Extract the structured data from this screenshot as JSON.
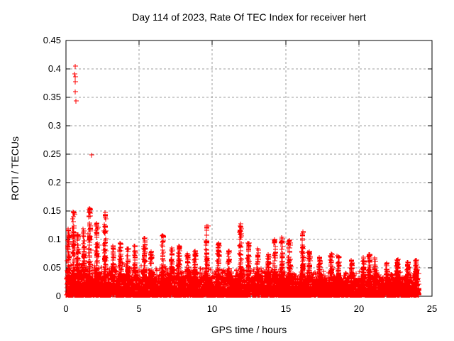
{
  "background_color": "#ffffff",
  "chart_data": {
    "type": "scatter",
    "title": "Day 114 of 2023, Rate Of TEC Index for receiver hert",
    "xlabel": "GPS time / hours",
    "ylabel": "ROTI / TECUs",
    "xlim": [
      0,
      25
    ],
    "ylim": [
      0,
      0.45
    ],
    "xticks": [
      0,
      5,
      10,
      15,
      20,
      25
    ],
    "xtick_labels": [
      "0",
      "5",
      "10",
      "15",
      "20",
      "25"
    ],
    "yticks": [
      0,
      0.05,
      0.1,
      0.15,
      0.2,
      0.25,
      0.3,
      0.35,
      0.4,
      0.45
    ],
    "ytick_labels": [
      "0",
      "0.05",
      "0.1",
      "0.15",
      "0.2",
      "0.25",
      "0.3",
      "0.35",
      "0.4",
      "0.45"
    ],
    "grid": true,
    "legend": null,
    "marker": "plus",
    "marker_color": "#ff0000",
    "grid_color": "#9e9e9e",
    "frame_color": "#000000",
    "x_data_range": [
      0,
      24.1
    ],
    "baseline_band": {
      "y_min": 0.002,
      "y_typical_max_by_hour": [
        [
          0,
          0.065
        ],
        [
          2,
          0.06
        ],
        [
          6,
          0.055
        ],
        [
          10,
          0.055
        ],
        [
          14,
          0.05
        ],
        [
          17,
          0.045
        ],
        [
          21,
          0.043
        ],
        [
          24.1,
          0.045
        ]
      ],
      "description": "dense noise band of ROTI values hugging 0-0.05 TECUs across the full 24 h"
    },
    "outlier_points": [
      [
        0.62,
        0.405
      ],
      [
        0.6,
        0.391
      ],
      [
        0.62,
        0.386
      ],
      [
        0.63,
        0.378
      ],
      [
        0.65,
        0.36
      ],
      [
        0.66,
        0.344
      ],
      [
        1.74,
        0.249
      ]
    ],
    "spike_peaks": [
      [
        0.15,
        0.12
      ],
      [
        0.5,
        0.149
      ],
      [
        0.8,
        0.11
      ],
      [
        1.2,
        0.12
      ],
      [
        1.6,
        0.155
      ],
      [
        2.1,
        0.13
      ],
      [
        2.65,
        0.149
      ],
      [
        3.2,
        0.09
      ],
      [
        3.7,
        0.095
      ],
      [
        4.2,
        0.085
      ],
      [
        4.7,
        0.09
      ],
      [
        5.35,
        0.105
      ],
      [
        5.8,
        0.08
      ],
      [
        6.6,
        0.11
      ],
      [
        7.2,
        0.085
      ],
      [
        7.7,
        0.09
      ],
      [
        8.3,
        0.075
      ],
      [
        8.8,
        0.08
      ],
      [
        9.6,
        0.125
      ],
      [
        10.4,
        0.095
      ],
      [
        11.1,
        0.08
      ],
      [
        11.9,
        0.128
      ],
      [
        12.45,
        0.095
      ],
      [
        13.1,
        0.085
      ],
      [
        13.8,
        0.075
      ],
      [
        14.25,
        0.1
      ],
      [
        14.75,
        0.105
      ],
      [
        15.25,
        0.1
      ],
      [
        16.15,
        0.115
      ],
      [
        16.6,
        0.08
      ],
      [
        17.3,
        0.07
      ],
      [
        18.1,
        0.075
      ],
      [
        18.6,
        0.072
      ],
      [
        19.5,
        0.065
      ],
      [
        20.3,
        0.07
      ],
      [
        20.7,
        0.075
      ],
      [
        21.1,
        0.068
      ],
      [
        21.9,
        0.06
      ],
      [
        22.6,
        0.065
      ],
      [
        23.3,
        0.06
      ],
      [
        23.9,
        0.065
      ]
    ],
    "n_points_estimate": 8000
  }
}
